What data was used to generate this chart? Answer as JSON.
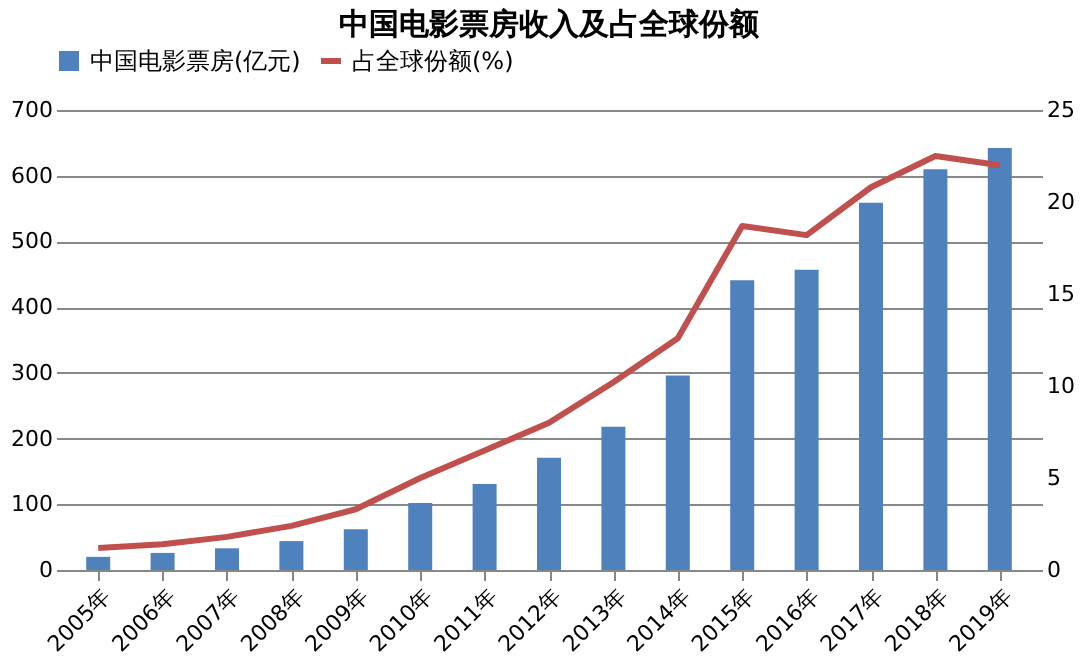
{
  "chart_data": {
    "type": "bar",
    "title": "中国电影票房收入及占全球份额",
    "categories": [
      "2005年",
      "2006年",
      "2007年",
      "2008年",
      "2009年",
      "2010年",
      "2011年",
      "2012年",
      "2013年",
      "2014年",
      "2015年",
      "2016年",
      "2017年",
      "2018年",
      "2019年"
    ],
    "series": [
      {
        "name": "中国电影票房(亿元)",
        "color": "#4f81bd",
        "values": [
          20,
          26,
          33,
          44,
          62,
          102,
          131,
          171,
          218,
          296,
          441,
          457,
          559,
          610,
          642
        ]
      },
      {
        "name": "占全球份额(%)",
        "color": "#c0504d",
        "type": "line",
        "axis": "y2",
        "values": [
          1.2,
          1.4,
          1.8,
          2.4,
          3.3,
          5.0,
          6.5,
          8.0,
          10.2,
          12.6,
          18.7,
          18.2,
          20.8,
          22.5,
          22.0
        ]
      }
    ],
    "ylim": [
      0,
      700
    ],
    "yticks": [
      0,
      100,
      200,
      300,
      400,
      500,
      600,
      700
    ],
    "y2lim": [
      0,
      25
    ],
    "y2ticks": [
      0,
      5,
      10,
      15,
      20,
      25
    ],
    "grid": "y",
    "legend": "top",
    "marker": "none",
    "line_style": "solid"
  }
}
